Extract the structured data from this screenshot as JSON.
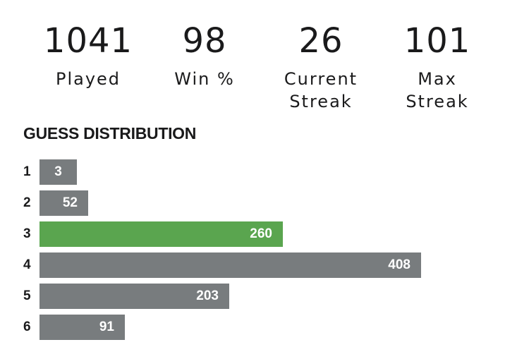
{
  "stats": {
    "played": {
      "value": "1041",
      "label": "Played"
    },
    "win_pct": {
      "value": "98",
      "label": "Win %"
    },
    "current_streak": {
      "value": "26",
      "label": "Current\nStreak"
    },
    "max_streak": {
      "value": "101",
      "label": "Max\nStreak"
    }
  },
  "distribution": {
    "title": "GUESS DISTRIBUTION",
    "highlight_guess": "3",
    "colors": {
      "bar": "#787c7e",
      "highlight": "#5aa54f"
    },
    "rows": [
      {
        "guess": "1",
        "count": 3
      },
      {
        "guess": "2",
        "count": 52
      },
      {
        "guess": "3",
        "count": 260
      },
      {
        "guess": "4",
        "count": 408
      },
      {
        "guess": "5",
        "count": 203
      },
      {
        "guess": "6",
        "count": 91
      }
    ]
  }
}
